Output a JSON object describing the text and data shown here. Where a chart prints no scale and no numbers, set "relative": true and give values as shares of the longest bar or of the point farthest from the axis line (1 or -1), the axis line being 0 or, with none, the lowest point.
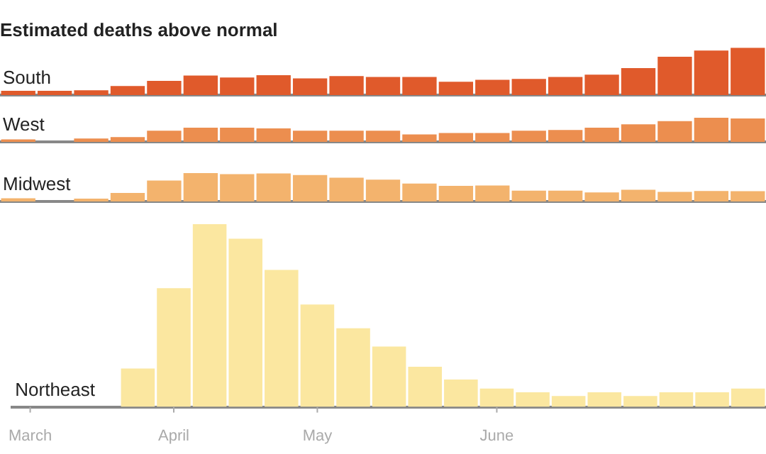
{
  "chart_data": [
    {
      "type": "bar",
      "title": "Estimated deaths above normal",
      "relative": true,
      "categories": [
        null,
        null,
        null,
        null,
        null,
        null,
        null,
        null,
        null,
        null,
        null,
        null,
        null,
        null,
        null,
        null,
        null,
        null,
        null,
        null,
        null
      ],
      "series": [
        {
          "name": "South",
          "color": "#e05a2b",
          "values": [
            0.09,
            0.09,
            0.1,
            0.19,
            0.3,
            0.41,
            0.37,
            0.42,
            0.35,
            0.4,
            0.38,
            0.38,
            0.28,
            0.32,
            0.34,
            0.38,
            0.43,
            0.57,
            0.81,
            0.94,
            1
          ]
        }
      ]
    },
    {
      "type": "bar",
      "relative": true,
      "categories": [
        null,
        null,
        null,
        null,
        null,
        null,
        null,
        null,
        null,
        null,
        null,
        null,
        null,
        null,
        null,
        null,
        null,
        null,
        null,
        null,
        null
      ],
      "series": [
        {
          "name": "West",
          "color": "#ec8e4f",
          "values": [
            0.1,
            0,
            0.14,
            0.2,
            0.46,
            0.59,
            0.59,
            0.56,
            0.46,
            0.46,
            0.46,
            0.31,
            0.37,
            0.37,
            0.46,
            0.49,
            0.59,
            0.73,
            0.86,
            1,
            0.97
          ]
        }
      ]
    },
    {
      "type": "bar",
      "relative": true,
      "categories": [
        null,
        null,
        null,
        null,
        null,
        null,
        null,
        null,
        null,
        null,
        null,
        null,
        null,
        null,
        null,
        null,
        null,
        null,
        null,
        null,
        null
      ],
      "series": [
        {
          "name": "Midwest",
          "color": "#f3b36d",
          "values": [
            0.11,
            0,
            0.1,
            0.3,
            0.74,
            1,
            0.96,
            0.99,
            0.93,
            0.84,
            0.77,
            0.63,
            0.55,
            0.56,
            0.38,
            0.38,
            0.32,
            0.41,
            0.34,
            0.37,
            0.36
          ]
        }
      ]
    },
    {
      "type": "bar",
      "relative": true,
      "categories": [
        "March",
        null,
        null,
        null,
        "April",
        null,
        null,
        null,
        "May",
        null,
        null,
        null,
        null,
        "June",
        null,
        null,
        null,
        null,
        null,
        null,
        null
      ],
      "series": [
        {
          "name": "Northeast",
          "color": "#fbe7a0",
          "values": [
            0,
            0,
            0,
            0.21,
            0.65,
            1,
            0.92,
            0.75,
            0.56,
            0.43,
            0.33,
            0.22,
            0.15,
            0.1,
            0.08,
            0.06,
            0.08,
            0.06,
            0.08,
            0.08,
            0.1
          ]
        }
      ]
    }
  ]
}
